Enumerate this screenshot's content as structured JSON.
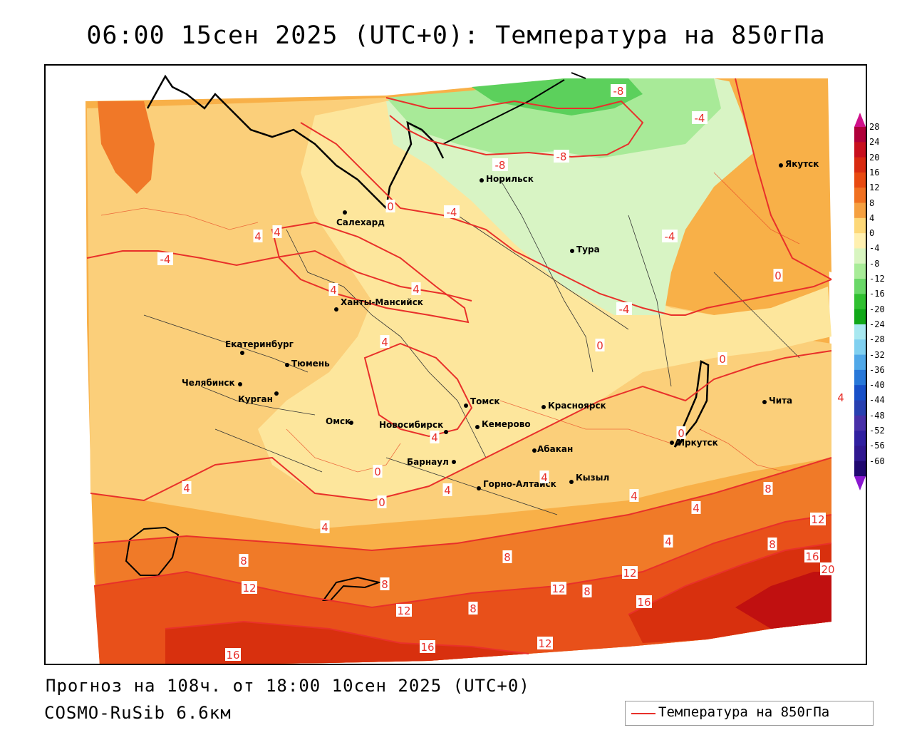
{
  "title": "06:00 15сен 2025 (UTC+0): Температура на 850гПа",
  "footer": {
    "forecast": "Прогноз на 108ч. от 18:00 10сен 2025 (UTC+0)",
    "model": "COSMO-RuSib 6.6км"
  },
  "legend": {
    "label": "Температура на 850гПа",
    "line_color": "#e8302a"
  },
  "colorbar": {
    "labels": [
      "28",
      "24",
      "20",
      "16",
      "12",
      "8",
      "4",
      "0",
      "-4",
      "-8",
      "-12",
      "-16",
      "-20",
      "-24",
      "-28",
      "-32",
      "-36",
      "-40",
      "-44",
      "-48",
      "-52",
      "-56",
      "-60"
    ],
    "colors": [
      "#b0003a",
      "#c8101e",
      "#d82a10",
      "#e84a10",
      "#f07020",
      "#f5a040",
      "#fdd878",
      "#fff0b0",
      "#d8f5c0",
      "#a8ec98",
      "#6ad868",
      "#30c030",
      "#10a818",
      "#a8e8f0",
      "#80d0f0",
      "#50a8e8",
      "#2878d8",
      "#1850c8",
      "#2840b0",
      "#4830a8",
      "#3020a0",
      "#301890",
      "#200870"
    ]
  },
  "cities": [
    {
      "name": "Норильск"
    },
    {
      "name": "Якутск"
    },
    {
      "name": "Салехард"
    },
    {
      "name": "Тура"
    },
    {
      "name": "Ханты-Мансийск"
    },
    {
      "name": "Екатеринбург"
    },
    {
      "name": "Тюмень"
    },
    {
      "name": "Челябинск"
    },
    {
      "name": "Курган"
    },
    {
      "name": "Омск"
    },
    {
      "name": "Новосибирск"
    },
    {
      "name": "Томск"
    },
    {
      "name": "Кемерово"
    },
    {
      "name": "Красноярск"
    },
    {
      "name": "Абакан"
    },
    {
      "name": "Барнаул"
    },
    {
      "name": "Горно-Алтайск"
    },
    {
      "name": "Кызыл"
    },
    {
      "name": "Иркутск"
    },
    {
      "name": "Чита"
    }
  ],
  "isotherm_labels": [
    "-8",
    "-4",
    "-8",
    "-8",
    "-4",
    "-4",
    "-4",
    "-4",
    "0",
    "0",
    "0",
    "0",
    "0",
    "0",
    "0",
    "4",
    "4",
    "4",
    "4",
    "4",
    "4",
    "4",
    "4",
    "4",
    "4",
    "4",
    "4",
    "4",
    "4",
    "8",
    "8",
    "8",
    "8",
    "8",
    "8",
    "8",
    "12",
    "12",
    "12",
    "12",
    "12",
    "12",
    "16",
    "16",
    "16",
    "16",
    "20"
  ]
}
